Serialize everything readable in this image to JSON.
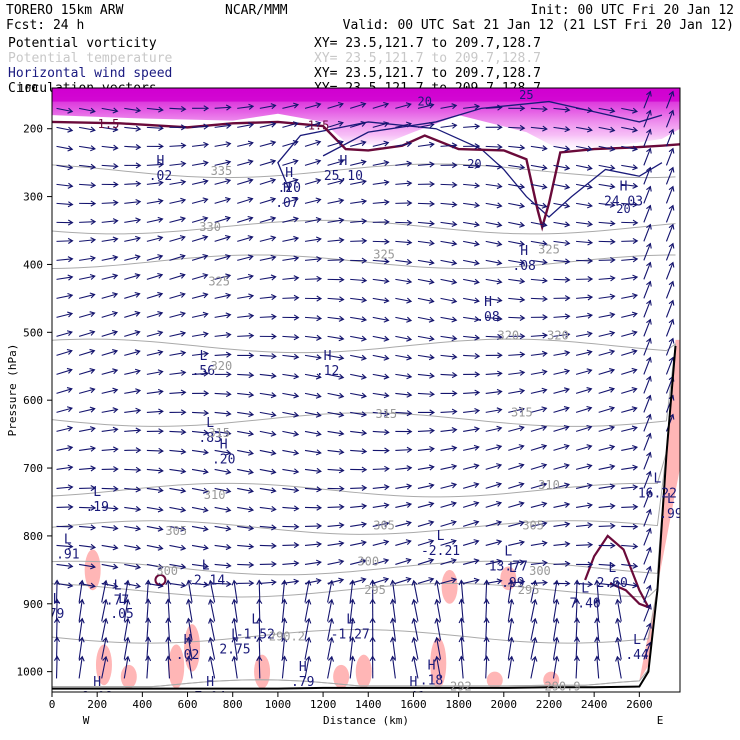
{
  "header": {
    "model": "TORERO  15km ARW",
    "center": "NCAR/MMM",
    "init": "Init: 00 UTC Fri 20 Jan 12",
    "fcst": "Fcst:   24 h",
    "valid": "Valid: 00 UTC Sat 21 Jan 12 (21 LST Fri 20 Jan 12)"
  },
  "fields": [
    {
      "name": "Potential vorticity",
      "xy": "XY=  23.5,121.7 to 209.7,128.7",
      "color": "#000000"
    },
    {
      "name": "Potential temperature",
      "xy": "XY=  23.5,121.7 to 209.7,128.7",
      "color": "#c0c0c0"
    },
    {
      "name": "Horizontal wind speed",
      "xy": "XY=  23.5,121.7 to 209.7,128.7",
      "color": "#1a1a80"
    },
    {
      "name": "Circulation vectors",
      "xy": "XY=  23.5,121.7 to 209.7,128.7",
      "color": "#000000"
    }
  ],
  "colors": {
    "theta": "#aaaaaa",
    "wind": "#1a1a7a",
    "vectors": "#14146e",
    "pv_high": "#d000d0",
    "pv_low": "#ffb6b6",
    "pv_contour": "#6a0a3a",
    "terrain": "#000000"
  },
  "chart_data": {
    "type": "heatmap",
    "xlabel": "Distance (km)",
    "ylabel": "Pressure (hPa)",
    "xlim": [
      0,
      2780
    ],
    "ylim": [
      1030,
      140
    ],
    "x_ticks": [
      0,
      200,
      400,
      600,
      800,
      1000,
      1200,
      1400,
      1600,
      1800,
      2000,
      2200,
      2400,
      2600
    ],
    "y_ticks": [
      200,
      300,
      400,
      500,
      600,
      700,
      800,
      900,
      1000
    ],
    "top_label": "100",
    "x_ends": {
      "left": "W",
      "right": "E"
    },
    "theta_contours": [
      {
        "label": "335",
        "x": 750,
        "p": 262
      },
      {
        "label": "330",
        "x": 700,
        "p": 345
      },
      {
        "label": "325",
        "x": 740,
        "p": 425
      },
      {
        "label": "325",
        "x": 1470,
        "p": 385
      },
      {
        "label": "325",
        "x": 2200,
        "p": 378
      },
      {
        "label": "320",
        "x": 750,
        "p": 550
      },
      {
        "label": "320",
        "x": 2020,
        "p": 505
      },
      {
        "label": "320",
        "x": 2240,
        "p": 505
      },
      {
        "label": "315",
        "x": 740,
        "p": 648
      },
      {
        "label": "315",
        "x": 1480,
        "p": 620
      },
      {
        "label": "315",
        "x": 2080,
        "p": 618
      },
      {
        "label": "310",
        "x": 720,
        "p": 740
      },
      {
        "label": "310",
        "x": 2200,
        "p": 725
      },
      {
        "label": "305",
        "x": 550,
        "p": 793
      },
      {
        "label": "305",
        "x": 1470,
        "p": 785
      },
      {
        "label": "305",
        "x": 2130,
        "p": 785
      },
      {
        "label": "300",
        "x": 510,
        "p": 852
      },
      {
        "label": "300",
        "x": 1400,
        "p": 838
      },
      {
        "label": "300",
        "x": 2160,
        "p": 852
      },
      {
        "label": "295",
        "x": 1430,
        "p": 880
      },
      {
        "label": "295",
        "x": 2110,
        "p": 880
      },
      {
        "label": "292",
        "x": 1810,
        "p": 1022
      },
      {
        "label": "290.2",
        "x": 1040,
        "p": 948
      },
      {
        "label": "290.9",
        "x": 2260,
        "p": 1022
      }
    ],
    "wind_speed_contours": [
      {
        "label": "20",
        "x": 1650,
        "p": 160
      },
      {
        "label": "25",
        "x": 2100,
        "p": 150
      },
      {
        "label": "20",
        "x": 1870,
        "p": 252
      },
      {
        "label": "20",
        "x": 2530,
        "p": 318
      }
    ],
    "pv_contours": [
      {
        "label": "1.5",
        "x": 250,
        "p": 193
      },
      {
        "label": "1.5",
        "x": 1180,
        "p": 195
      }
    ],
    "extrema": [
      {
        "type": "H",
        "value": ".02",
        "x": 480,
        "p": 262
      },
      {
        "type": "H",
        "value": ".20",
        "x": 1050,
        "p": 280
      },
      {
        "type": "H",
        "value": ".07",
        "x": 1040,
        "p": 302
      },
      {
        "type": "H",
        "value": "25.10",
        "x": 1290,
        "p": 262
      },
      {
        "type": "H",
        "value": "24.03",
        "x": 2530,
        "p": 300
      },
      {
        "type": "H",
        "value": ".08",
        "x": 2090,
        "p": 395
      },
      {
        "type": "H",
        "value": ".08",
        "x": 1930,
        "p": 470
      },
      {
        "type": "H",
        "value": ".12",
        "x": 1220,
        "p": 550
      },
      {
        "type": "L",
        "value": ".56",
        "x": 670,
        "p": 550
      },
      {
        "type": "L",
        "value": ".83",
        "x": 700,
        "p": 648
      },
      {
        "type": "H",
        "value": ".20",
        "x": 760,
        "p": 680
      },
      {
        "type": "L",
        "value": ".19",
        "x": 200,
        "p": 750
      },
      {
        "type": "L",
        "value": ".91",
        "x": 70,
        "p": 820
      },
      {
        "type": "L",
        "value": "-2.14",
        "x": 680,
        "p": 858
      },
      {
        "type": "L",
        "value": ".77",
        "x": 290,
        "p": 888
      },
      {
        "type": "L",
        "value": ".05",
        "x": 310,
        "p": 908
      },
      {
        "type": "L",
        "value": "-1.52",
        "x": 900,
        "p": 938
      },
      {
        "type": "L",
        "value": "-1.27",
        "x": 1320,
        "p": 938
      },
      {
        "type": "L",
        "value": "2.75",
        "x": 810,
        "p": 960
      },
      {
        "type": "L",
        "value": "-2.21",
        "x": 1720,
        "p": 815
      },
      {
        "type": "L",
        "value": "13.77",
        "x": 2020,
        "p": 838
      },
      {
        "type": "L",
        "value": ".99",
        "x": 2040,
        "p": 862
      },
      {
        "type": "L",
        "value": "2.60",
        "x": 2480,
        "p": 862
      },
      {
        "type": "L",
        "value": "7.40",
        "x": 2360,
        "p": 892
      },
      {
        "type": "L",
        "value": ".44",
        "x": 2590,
        "p": 968
      },
      {
        "type": "H",
        "value": ".02",
        "x": 600,
        "p": 968
      },
      {
        "type": "H",
        "value": ".79",
        "x": 1110,
        "p": 1008
      },
      {
        "type": "H",
        "value": ".18",
        "x": 1680,
        "p": 1006
      },
      {
        "type": "H",
        "value": ".41",
        "x": 1600,
        "p": 1030
      },
      {
        "type": "H",
        "value": "7.04",
        "x": 700,
        "p": 1030
      },
      {
        "type": "H",
        "value": "8.08",
        "x": 200,
        "p": 1030
      },
      {
        "type": "L",
        "value": "16.22",
        "x": 2680,
        "p": 730
      },
      {
        "type": "L",
        "value": ".99",
        "x": 2740,
        "p": 760
      },
      {
        "type": "L",
        "value": "79",
        "x": 20,
        "p": 908
      }
    ],
    "terrain_profile": {
      "distance_km": [
        0,
        200,
        400,
        600,
        800,
        1000,
        1200,
        1400,
        1600,
        1800,
        2000,
        2200,
        2400,
        2600,
        2640,
        2680,
        2720,
        2760
      ],
      "surface_pressure_hPa": [
        1025,
        1025,
        1025,
        1025,
        1025,
        1025,
        1024,
        1024,
        1024,
        1024,
        1024,
        1023,
        1023,
        1022,
        1000,
        880,
        680,
        520
      ]
    }
  }
}
